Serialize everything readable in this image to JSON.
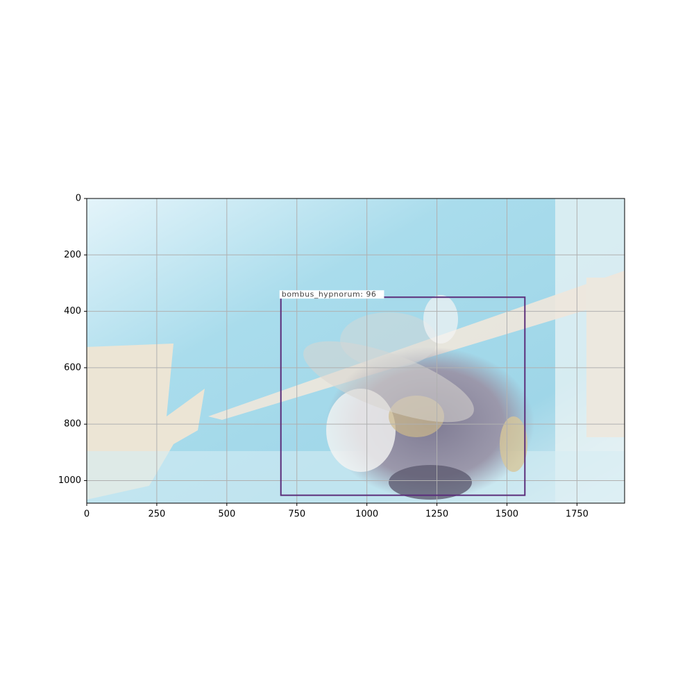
{
  "chart_data": {
    "type": "image",
    "xlim": [
      0,
      1920
    ],
    "ylim": [
      1080,
      0
    ],
    "xticks": [
      0,
      250,
      500,
      750,
      1000,
      1250,
      1500,
      1750
    ],
    "yticks": [
      0,
      200,
      400,
      600,
      800,
      1000
    ],
    "grid": true,
    "boxes": [
      {
        "label": "bombus_hypnorum: 96",
        "x": [
          693,
          1564
        ],
        "y": [
          350,
          1052
        ],
        "color": "#5b2d7a"
      }
    ]
  }
}
